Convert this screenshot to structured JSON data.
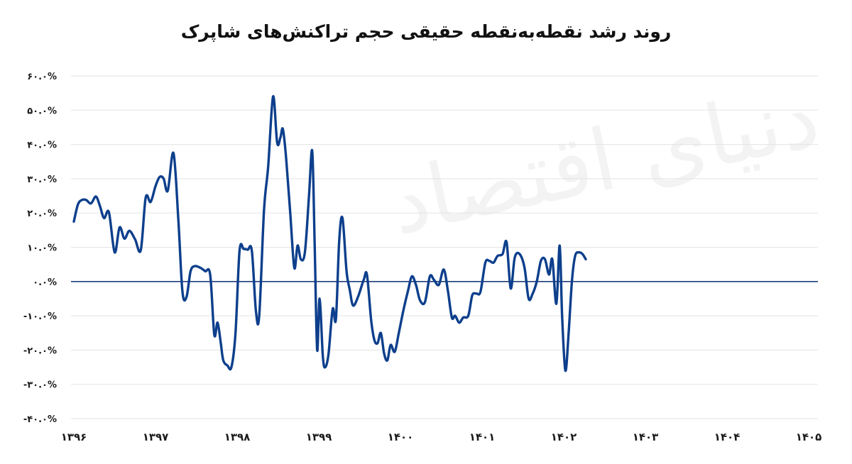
{
  "chart_data": {
    "type": "line",
    "title": "روند رشد نقطه‌به‌نقطه حقیقی حجم تراکنش‌های شاپرک",
    "xlabel": "",
    "ylabel": "",
    "ylim": [
      -40,
      60
    ],
    "grid": true,
    "yticks": [
      60,
      50,
      40,
      30,
      20,
      10,
      0,
      -10,
      -20,
      -30,
      -40
    ],
    "ytick_labels": [
      "۶۰.۰%",
      "۵۰.۰%",
      "۴۰.۰%",
      "۳۰.۰%",
      "۲۰.۰%",
      "۱۰.۰%",
      "۰.۰%",
      "-۱۰.۰%",
      "-۲۰.۰%",
      "-۳۰.۰%",
      "-۴۰.۰%"
    ],
    "xticks": [
      "۱۳۹۶",
      "۱۳۹۷",
      "۱۳۹۸",
      "۱۳۹۹",
      "۱۴۰۰",
      "۱۴۰۱",
      "۱۴۰۲",
      "۱۴۰۳",
      "۱۴۰۴",
      "۱۴۰۵"
    ],
    "series": [
      {
        "color": "#0d3f8c",
        "points": [
          [
            0.0,
            17.5
          ],
          [
            0.05,
            22.5
          ],
          [
            0.1,
            23.8
          ],
          [
            0.15,
            23.8
          ],
          [
            0.21,
            22.8
          ],
          [
            0.27,
            24.8
          ],
          [
            0.32,
            22.0
          ],
          [
            0.37,
            18.5
          ],
          [
            0.43,
            20.2
          ],
          [
            0.5,
            8.5
          ],
          [
            0.56,
            15.8
          ],
          [
            0.62,
            12.5
          ],
          [
            0.68,
            14.8
          ],
          [
            0.75,
            12.3
          ],
          [
            0.82,
            9.2
          ],
          [
            0.88,
            24.5
          ],
          [
            0.94,
            23.2
          ],
          [
            1.0,
            27.8
          ],
          [
            1.05,
            30.5
          ],
          [
            1.1,
            30.0
          ],
          [
            1.15,
            26.5
          ],
          [
            1.22,
            37.5
          ],
          [
            1.28,
            18.0
          ],
          [
            1.33,
            -3.0
          ],
          [
            1.38,
            -4.5
          ],
          [
            1.43,
            3.0
          ],
          [
            1.48,
            4.5
          ],
          [
            1.55,
            4.0
          ],
          [
            1.61,
            3.0
          ],
          [
            1.67,
            2.0
          ],
          [
            1.72,
            -15.5
          ],
          [
            1.76,
            -12.0
          ],
          [
            1.8,
            -18.0
          ],
          [
            1.83,
            -23.0
          ],
          [
            1.88,
            -24.5
          ],
          [
            1.93,
            -25.0
          ],
          [
            1.98,
            -15.0
          ],
          [
            2.03,
            9.0
          ],
          [
            2.08,
            9.5
          ],
          [
            2.13,
            9.3
          ],
          [
            2.18,
            9.0
          ],
          [
            2.23,
            -8.5
          ],
          [
            2.27,
            -10.0
          ],
          [
            2.33,
            21.0
          ],
          [
            2.38,
            33.5
          ],
          [
            2.44,
            54.0
          ],
          [
            2.49,
            40.5
          ],
          [
            2.53,
            42.0
          ],
          [
            2.56,
            44.5
          ],
          [
            2.6,
            36.0
          ],
          [
            2.65,
            20.0
          ],
          [
            2.7,
            4.0
          ],
          [
            2.74,
            10.5
          ],
          [
            2.78,
            6.5
          ],
          [
            2.83,
            8.5
          ],
          [
            2.88,
            25.0
          ],
          [
            2.92,
            38.0
          ],
          [
            2.95,
            10.0
          ],
          [
            2.98,
            -20.0
          ],
          [
            3.01,
            -5.0
          ],
          [
            3.05,
            -22.0
          ],
          [
            3.08,
            -25.0
          ],
          [
            3.12,
            -21.0
          ],
          [
            3.17,
            -8.0
          ],
          [
            3.21,
            -11.0
          ],
          [
            3.25,
            12.0
          ],
          [
            3.29,
            18.5
          ],
          [
            3.34,
            3.0
          ],
          [
            3.38,
            -2.5
          ],
          [
            3.42,
            -7.0
          ],
          [
            3.48,
            -4.5
          ],
          [
            3.55,
            0.5
          ],
          [
            3.59,
            2.0
          ],
          [
            3.64,
            -11.0
          ],
          [
            3.68,
            -17.0
          ],
          [
            3.72,
            -18.0
          ],
          [
            3.76,
            -15.0
          ],
          [
            3.8,
            -21.0
          ],
          [
            3.84,
            -23.0
          ],
          [
            3.88,
            -18.5
          ],
          [
            3.93,
            -20.5
          ],
          [
            3.98,
            -15.0
          ],
          [
            4.04,
            -8.0
          ],
          [
            4.09,
            -3.0
          ],
          [
            4.14,
            1.5
          ],
          [
            4.19,
            -1.0
          ],
          [
            4.24,
            -5.5
          ],
          [
            4.3,
            -6.0
          ],
          [
            4.36,
            1.5
          ],
          [
            4.41,
            0.5
          ],
          [
            4.47,
            -1.0
          ],
          [
            4.53,
            3.5
          ],
          [
            4.58,
            -2.5
          ],
          [
            4.63,
            -10.5
          ],
          [
            4.67,
            -10.0
          ],
          [
            4.72,
            -12.0
          ],
          [
            4.77,
            -10.5
          ],
          [
            4.83,
            -10.0
          ],
          [
            4.88,
            -4.0
          ],
          [
            4.93,
            -3.5
          ],
          [
            4.98,
            -3.0
          ],
          [
            5.04,
            5.5
          ],
          [
            5.09,
            6.0
          ],
          [
            5.14,
            5.5
          ],
          [
            5.19,
            7.5
          ],
          [
            5.25,
            8.0
          ],
          [
            5.3,
            11.5
          ],
          [
            5.35,
            -2.0
          ],
          [
            5.4,
            7.0
          ],
          [
            5.46,
            8.0
          ],
          [
            5.52,
            4.0
          ],
          [
            5.57,
            -5.0
          ],
          [
            5.62,
            -3.5
          ],
          [
            5.67,
            0.0
          ],
          [
            5.72,
            6.0
          ],
          [
            5.77,
            6.5
          ],
          [
            5.82,
            2.0
          ],
          [
            5.86,
            6.5
          ],
          [
            5.91,
            -6.5
          ],
          [
            5.95,
            10.5
          ],
          [
            5.98,
            -10.0
          ],
          [
            6.02,
            -26.0
          ],
          [
            6.06,
            -15.0
          ],
          [
            6.1,
            0.0
          ],
          [
            6.14,
            7.5
          ],
          [
            6.19,
            8.5
          ],
          [
            6.23,
            8.0
          ],
          [
            6.27,
            6.5
          ]
        ]
      }
    ]
  }
}
